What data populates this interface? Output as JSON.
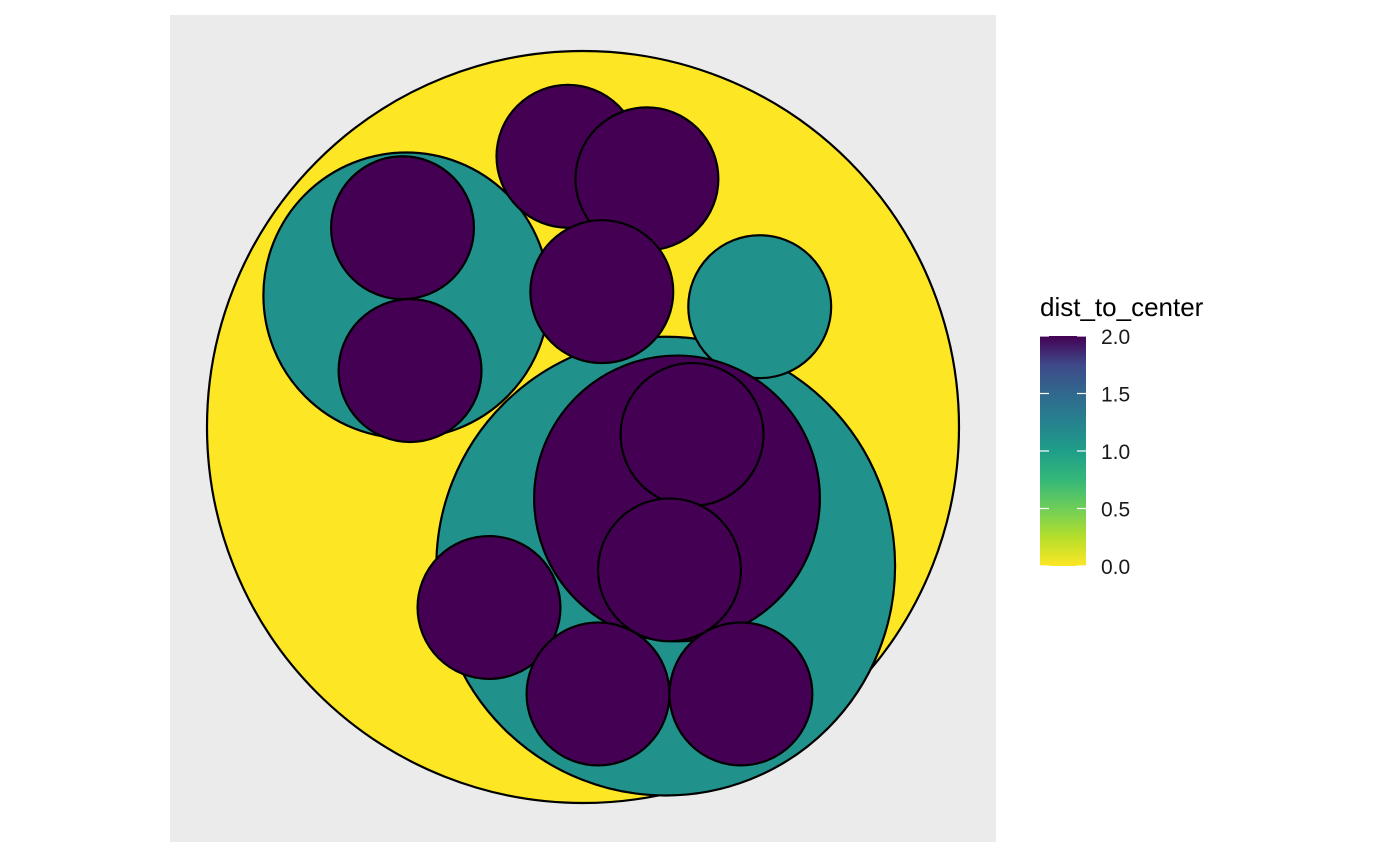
{
  "chart_data": {
    "type": "circle-packing",
    "title": "",
    "xlabel": "",
    "ylabel": "",
    "grid": false,
    "panel_background": "#EBEBEB",
    "legend": {
      "title": "dist_to_center",
      "position": "right",
      "scale": "viridis",
      "range": [
        0.0,
        2.0
      ],
      "ticks": [
        {
          "value": 0.0,
          "label": "0.0"
        },
        {
          "value": 0.5,
          "label": "0.5"
        },
        {
          "value": 1.0,
          "label": "1.0"
        },
        {
          "value": 1.5,
          "label": "1.5"
        },
        {
          "value": 2.0,
          "label": "2.0"
        }
      ],
      "colors": [
        "#FDE725",
        "#5EC962",
        "#21918C",
        "#3B528B",
        "#440154"
      ]
    },
    "circles": [
      {
        "id": "root",
        "x": 0.0,
        "y": 0.0,
        "r": 1.0,
        "dist_to_center": 0.0,
        "depth": 0
      },
      {
        "id": "group-a",
        "x": -0.47,
        "y": 0.35,
        "r": 0.38,
        "dist_to_center": 1.0,
        "depth": 1
      },
      {
        "id": "group-b",
        "x": 0.22,
        "y": -0.37,
        "r": 0.61,
        "dist_to_center": 1.0,
        "depth": 1
      },
      {
        "id": "group-c",
        "x": 0.47,
        "y": 0.32,
        "r": 0.19,
        "dist_to_center": 1.0,
        "depth": 1
      },
      {
        "id": "group-d",
        "x": 0.25,
        "y": -0.19,
        "r": 0.38,
        "dist_to_center": 2.0,
        "depth": 2
      },
      {
        "id": "leaf-1",
        "x": -0.48,
        "y": 0.53,
        "r": 0.19,
        "dist_to_center": 2.0,
        "depth": 2
      },
      {
        "id": "leaf-2",
        "x": -0.46,
        "y": 0.15,
        "r": 0.19,
        "dist_to_center": 2.0,
        "depth": 2
      },
      {
        "id": "leaf-3",
        "x": -0.04,
        "y": 0.72,
        "r": 0.19,
        "dist_to_center": 2.0,
        "depth": 1
      },
      {
        "id": "leaf-4",
        "x": 0.17,
        "y": 0.66,
        "r": 0.19,
        "dist_to_center": 2.0,
        "depth": 1
      },
      {
        "id": "leaf-5",
        "x": 0.05,
        "y": 0.36,
        "r": 0.19,
        "dist_to_center": 2.0,
        "depth": 1
      },
      {
        "id": "leaf-6",
        "x": 0.29,
        "y": -0.02,
        "r": 0.19,
        "dist_to_center": 2.0,
        "depth": 3
      },
      {
        "id": "leaf-7",
        "x": 0.23,
        "y": -0.38,
        "r": 0.19,
        "dist_to_center": 2.0,
        "depth": 3
      },
      {
        "id": "leaf-8",
        "x": -0.25,
        "y": -0.48,
        "r": 0.19,
        "dist_to_center": 2.0,
        "depth": 2
      },
      {
        "id": "leaf-9",
        "x": 0.04,
        "y": -0.71,
        "r": 0.19,
        "dist_to_center": 2.0,
        "depth": 2
      },
      {
        "id": "leaf-10",
        "x": 0.42,
        "y": -0.71,
        "r": 0.19,
        "dist_to_center": 2.0,
        "depth": 2
      }
    ]
  }
}
